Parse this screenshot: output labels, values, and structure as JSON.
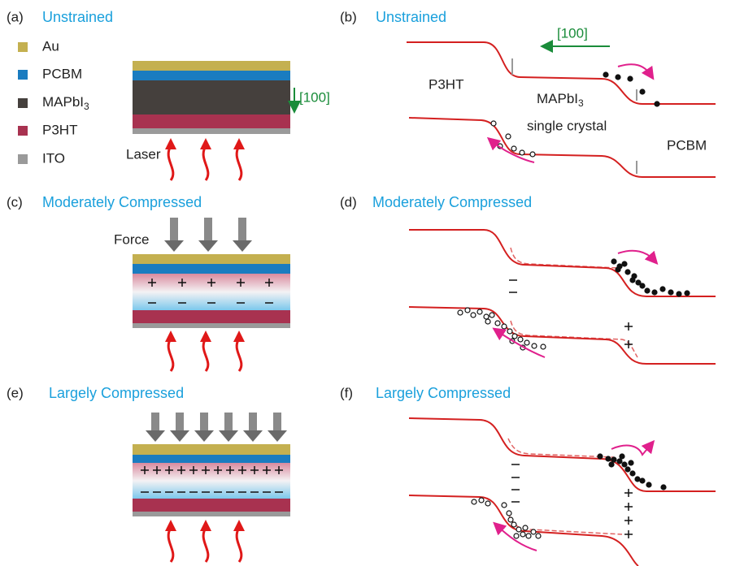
{
  "panels": [
    {
      "label": "(a)",
      "title": "Unstrained"
    },
    {
      "label": "(b)",
      "title": "Unstrained"
    },
    {
      "label": "(c)",
      "title": "Moderately Compressed"
    },
    {
      "label": "(d)",
      "title": "Moderately Compressed"
    },
    {
      "label": "(e)",
      "title": "Largely Compressed"
    },
    {
      "label": "(f)",
      "title": "Largely Compressed"
    }
  ],
  "legend": [
    {
      "text": "Au"
    },
    {
      "text": "PCBM"
    },
    {
      "text": "MAPbI",
      "subscript": "3"
    },
    {
      "text": "P3HT"
    },
    {
      "text": "ITO"
    }
  ],
  "direction_label_a": "[100]",
  "direction_label_b": "[100]",
  "laser_label": "Laser",
  "force_label": "Force",
  "band_labels": {
    "p3ht": "P3HT",
    "perovskite": {
      "text": "MAPbI",
      "subscript": "3"
    },
    "crystal": "single crystal",
    "pcbm": "PCBM"
  }
}
